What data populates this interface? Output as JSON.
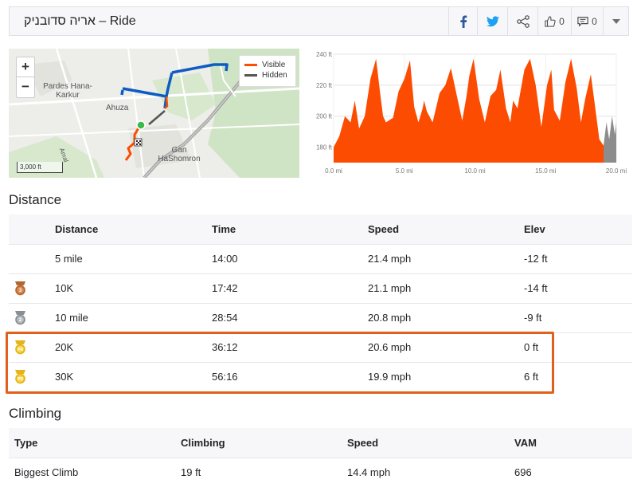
{
  "header": {
    "title_name": "אריה סדובניק",
    "title_suffix": " – Ride",
    "kudos_count": "0",
    "comments_count": "0"
  },
  "icons": [
    "facebook-icon",
    "twitter-icon",
    "share-icon",
    "thumbs-up-icon",
    "comment-icon",
    "chevron-down-icon",
    "plus-icon",
    "minus-icon",
    "medal-bronze-icon",
    "medal-silver-icon",
    "pr-medal-icon"
  ],
  "map": {
    "zoom_in": "+",
    "zoom_out": "−",
    "legend_visible": "Visible",
    "legend_hidden": "Hidden",
    "place_pardes": "Pardes Hana-Karkur",
    "place_ahuza": "Ahuza",
    "place_gan": "Gan HaShomron",
    "place_amal": "Amal",
    "scale": "3,000 ft",
    "colors": {
      "visible": "#fc4c02",
      "hidden": "#555555",
      "route": "#0d5cc4"
    }
  },
  "chart_data": {
    "type": "area",
    "x_unit": "mi",
    "xlim": [
      0,
      20
    ],
    "ylim": [
      170,
      240
    ],
    "x_ticks": [
      "0.0 mi",
      "5.0 mi",
      "10.0 mi",
      "15.0 mi",
      "20.0 mi"
    ],
    "y_ticks": [
      "180 ft",
      "200 ft",
      "220 ft",
      "240 ft"
    ],
    "series": [
      {
        "color": "#fc4c02",
        "x": [
          0.0,
          0.4,
          0.8,
          1.2,
          1.5,
          1.8,
          2.2,
          2.6,
          3.0,
          3.3,
          3.5,
          3.7,
          4.2,
          4.6,
          5.0,
          5.4,
          5.7,
          6.0,
          6.3,
          6.4,
          6.6,
          7.0,
          7.5,
          7.9,
          8.3,
          8.7,
          9.1,
          9.4,
          9.6,
          9.9,
          10.3,
          10.7,
          11.1,
          11.5,
          11.8,
          12.2,
          12.5,
          12.7,
          13.0,
          13.5,
          13.9,
          14.3,
          14.7,
          15.1,
          15.4,
          15.6,
          16.0,
          16.4,
          16.8,
          17.2,
          17.5,
          17.8,
          18.2,
          18.5,
          18.8,
          19.1
        ],
        "y": [
          180,
          187,
          200,
          196,
          210,
          192,
          200,
          224,
          237,
          214,
          200,
          196,
          199,
          216,
          224,
          236,
          206,
          196,
          205,
          210,
          203,
          196,
          215,
          220,
          231,
          214,
          197,
          213,
          226,
          237,
          211,
          196,
          213,
          217,
          230,
          205,
          196,
          210,
          205,
          230,
          237,
          220,
          193,
          220,
          230,
          204,
          197,
          222,
          237,
          218,
          196,
          211,
          227,
          206,
          185,
          181
        ]
      },
      {
        "color": "#8c8c8c",
        "x": [
          19.1,
          19.3,
          19.5,
          19.7,
          19.9,
          20.0
        ],
        "y": [
          181,
          196,
          185,
          200,
          188,
          196
        ]
      }
    ]
  },
  "distance": {
    "title": "Distance",
    "columns": [
      "Distance",
      "Time",
      "Speed",
      "Elev"
    ],
    "rows": [
      {
        "medal": "",
        "distance": "5 mile",
        "time": "14:00",
        "speed": "21.4 mph",
        "elev": "-12 ft"
      },
      {
        "medal": "3",
        "distance": "10K",
        "time": "17:42",
        "speed": "21.1 mph",
        "elev": "-14 ft"
      },
      {
        "medal": "2",
        "distance": "10 mile",
        "time": "28:54",
        "speed": "20.8 mph",
        "elev": "-9 ft"
      },
      {
        "medal": "PR",
        "distance": "20K",
        "time": "36:12",
        "speed": "20.6 mph",
        "elev": "0 ft"
      },
      {
        "medal": "PR",
        "distance": "30K",
        "time": "56:16",
        "speed": "19.9 mph",
        "elev": "6 ft"
      }
    ]
  },
  "climbing": {
    "title": "Climbing",
    "columns": [
      "Type",
      "Climbing",
      "Speed",
      "VAM"
    ],
    "rows": [
      {
        "type": "Biggest Climb",
        "climbing": "19 ft",
        "speed": "14.4 mph",
        "vam": "696"
      }
    ]
  }
}
